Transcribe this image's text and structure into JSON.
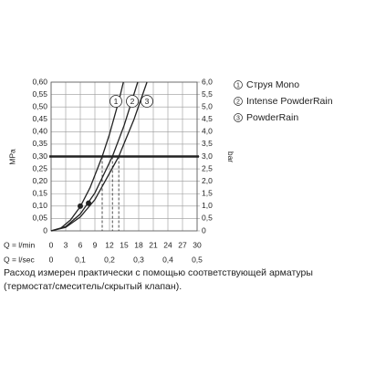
{
  "chart_data": {
    "type": "line",
    "series": [
      {
        "name": "Струя Mono",
        "label": "1",
        "color": "#222222",
        "x": [
          0,
          2,
          4,
          6,
          8,
          10.5,
          12,
          14,
          14.85
        ],
        "values": [
          0,
          0.011,
          0.044,
          0.098,
          0.174,
          0.3,
          0.39,
          0.53,
          0.6
        ]
      },
      {
        "name": "Intense PowderRain",
        "label": "2",
        "color": "#222222",
        "x": [
          0,
          3,
          6,
          9,
          12.6,
          15,
          17.8
        ],
        "values": [
          0,
          0.017,
          0.068,
          0.153,
          0.3,
          0.425,
          0.6
        ]
      },
      {
        "name": "PowderRain",
        "label": "3",
        "color": "#222222",
        "x": [
          0,
          3,
          6,
          9,
          13.9,
          17,
          19.7
        ],
        "values": [
          0,
          0.014,
          0.056,
          0.126,
          0.3,
          0.448,
          0.6
        ]
      }
    ],
    "points": {
      "x": [
        6,
        7.7
      ],
      "values": [
        0.1,
        0.112
      ]
    },
    "reference_y": 0.3,
    "dashed_x": [
      10.5,
      12.6,
      13.9
    ],
    "xlim": [
      0,
      30
    ],
    "xticks": [
      0,
      3,
      6,
      9,
      12,
      15,
      18,
      21,
      24,
      27,
      30
    ],
    "x_label": "Q = l/min",
    "x2lim": [
      0,
      0.5
    ],
    "x2ticks": [
      {
        "value": 0,
        "label": "0"
      },
      {
        "value": 0.1,
        "label": "0,1"
      },
      {
        "value": 0.2,
        "label": "0,2"
      },
      {
        "value": 0.3,
        "label": "0,3"
      },
      {
        "value": 0.4,
        "label": "0,4"
      },
      {
        "value": 0.5,
        "label": "0,5"
      }
    ],
    "x2_label": "Q = l/sec",
    "ylim": [
      0,
      0.6
    ],
    "yticks": [
      {
        "value": 0,
        "label": "0"
      },
      {
        "value": 0.05,
        "label": "0,05"
      },
      {
        "value": 0.1,
        "label": "0,10"
      },
      {
        "value": 0.15,
        "label": "0,15"
      },
      {
        "value": 0.2,
        "label": "0,20"
      },
      {
        "value": 0.25,
        "label": "0,25"
      },
      {
        "value": 0.3,
        "label": "0,30"
      },
      {
        "value": 0.35,
        "label": "0,35"
      },
      {
        "value": 0.4,
        "label": "0,40"
      },
      {
        "value": 0.45,
        "label": "0,45"
      },
      {
        "value": 0.5,
        "label": "0,50"
      },
      {
        "value": 0.55,
        "label": "0,55"
      },
      {
        "value": 0.6,
        "label": "0,60"
      }
    ],
    "y_label": "MPa",
    "y2lim": [
      0,
      6
    ],
    "y2ticks": [
      {
        "value": 0,
        "label": "0"
      },
      {
        "value": 0.5,
        "label": "0,5"
      },
      {
        "value": 1,
        "label": "1,0"
      },
      {
        "value": 1.5,
        "label": "1,5"
      },
      {
        "value": 2,
        "label": "2,0"
      },
      {
        "value": 2.5,
        "label": "2,5"
      },
      {
        "value": 3,
        "label": "3,0"
      },
      {
        "value": 3.5,
        "label": "3,5"
      },
      {
        "value": 4,
        "label": "4,0"
      },
      {
        "value": 4.5,
        "label": "4,5"
      },
      {
        "value": 5,
        "label": "5,0"
      },
      {
        "value": 5.5,
        "label": "5,5"
      },
      {
        "value": 6,
        "label": "6,0"
      }
    ],
    "y2_label": "bar",
    "grid": true,
    "footnote": "Расход измерен практически с помощью соответствующей арматуры (термостат/смеситель/скрытый клапан)."
  }
}
